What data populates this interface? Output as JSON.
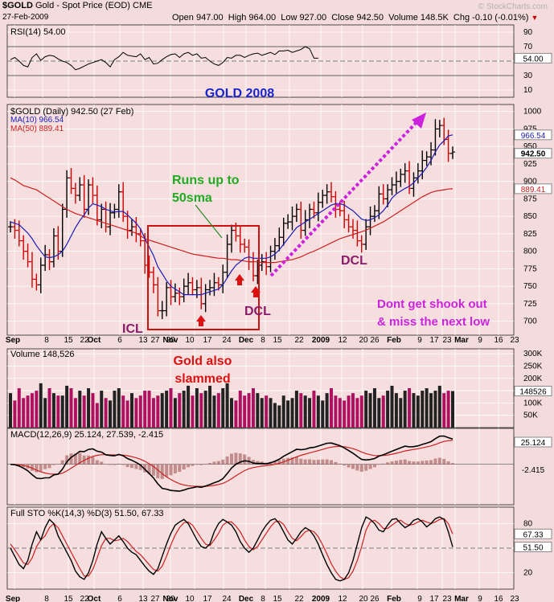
{
  "header": {
    "symbol": "$GOLD",
    "name": "Gold - Spot Price (EOD)",
    "exchange": "CME",
    "date": "27-Feb-2009",
    "open": "Open 947.00",
    "high": "High 964.00",
    "low": "Low 927.00",
    "close": "Close 942.50",
    "volume": "Volume 148.5K",
    "chg": "Chg -0.10 (-0.01%)",
    "chg_arrow": "▼",
    "watermark": "© StockCharts.com"
  },
  "colors": {
    "background": "#f4dcdc",
    "panel": "#f6dede",
    "grid": "#ffffff",
    "price_bar": "#000000",
    "down_bar": "#cc0000",
    "ma10": "#1c1cb4",
    "ma50": "#cc2020",
    "macd_signal": "#cc2020",
    "histogram": "#b07070",
    "volume_up": "#222222",
    "volume_down": "#b01060",
    "annotation_green": "#22aa22",
    "annotation_red": "#dd1111",
    "annotation_magenta": "#cc22dd",
    "annotation_purple": "#8a1a6a",
    "annotation_blue": "#1a22cc"
  },
  "chart_data": {
    "type": "line",
    "title": "GOLD 2008",
    "x_labels": [
      "Sep",
      "8",
      "15",
      "22",
      "Oct",
      "6",
      "13",
      "20",
      "27",
      "Nov",
      "10",
      "17",
      "24",
      "Dec",
      "8",
      "15",
      "22",
      "2009",
      "12",
      "20",
      "26",
      "Feb",
      "9",
      "17",
      "23",
      "Mar",
      "9",
      "16",
      "23"
    ],
    "rsi": {
      "label": "RSI(14) 54.00",
      "value": 54.0,
      "ticks": [
        90,
        70,
        50,
        30,
        10
      ],
      "ylim": [
        0,
        100
      ],
      "levels": [
        70,
        30
      ],
      "values": [
        52,
        55,
        50,
        44,
        42,
        55,
        60,
        51,
        56,
        58,
        57,
        53,
        50,
        48,
        44,
        38,
        40,
        43,
        46,
        48,
        50,
        52,
        48,
        42,
        52,
        56,
        62,
        58,
        57,
        56,
        60,
        52,
        55,
        46,
        47,
        52,
        56,
        59,
        60,
        55,
        60,
        62,
        58,
        60,
        54,
        55,
        50,
        46,
        44,
        48,
        55,
        54,
        58,
        58,
        55,
        58,
        60,
        61,
        58,
        60,
        62,
        59,
        64,
        64,
        65,
        62,
        64,
        66,
        70,
        67,
        54,
        54
      ]
    },
    "price": {
      "label": "$GOLD (Daily) 942.50 (27 Feb)",
      "ticks": [
        1000,
        975,
        950,
        925,
        900,
        875,
        850,
        825,
        800,
        775,
        750,
        725,
        700
      ],
      "ylim": [
        680,
        1010
      ],
      "last": "942.50",
      "ma10_label": "MA(10) 966.54",
      "ma10_value": "966.54",
      "ma50_label": "MA(50) 889.41",
      "ma50_value": "889.41",
      "closes": [
        835,
        830,
        815,
        800,
        785,
        760,
        752,
        780,
        795,
        785,
        822,
        800,
        860,
        905,
        890,
        880,
        895,
        860,
        895,
        880,
        845,
        860,
        835,
        855,
        860,
        885,
        850,
        830,
        835,
        825,
        815,
        780,
        770,
        752,
        715,
        715,
        748,
        735,
        740,
        735,
        750,
        755,
        745,
        748,
        725,
        745,
        748,
        755,
        752,
        770,
        810,
        830,
        822,
        810,
        806,
        785,
        765,
        780,
        785,
        778,
        800,
        808,
        820,
        840,
        842,
        850,
        860,
        830,
        845,
        860,
        855,
        870,
        880,
        885,
        878,
        860,
        858,
        845,
        835,
        830,
        815,
        810,
        835,
        850,
        858,
        882,
        875,
        888,
        895,
        900,
        910,
        915,
        890,
        905,
        915,
        930,
        935,
        945,
        975,
        980,
        960,
        940,
        942
      ],
      "ma10": [
        842,
        840,
        838,
        832,
        826,
        818,
        808,
        800,
        792,
        791,
        792,
        795,
        800,
        810,
        822,
        834,
        844,
        852,
        862,
        868,
        866,
        864,
        860,
        858,
        856,
        857,
        857,
        852,
        846,
        840,
        832,
        818,
        806,
        794,
        778,
        768,
        758,
        750,
        746,
        742,
        738,
        738,
        738,
        738,
        738,
        740,
        742,
        744,
        746,
        752,
        762,
        772,
        780,
        785,
        790,
        792,
        790,
        790,
        790,
        790,
        792,
        796,
        802,
        810,
        818,
        826,
        834,
        838,
        842,
        846,
        850,
        854,
        858,
        862,
        866,
        868,
        868,
        866,
        862,
        858,
        852,
        846,
        844,
        845,
        848,
        852,
        858,
        866,
        876,
        882,
        886,
        890,
        893,
        898,
        905,
        912,
        920,
        930,
        942,
        952,
        958,
        965,
        966.5
      ],
      "ma50": [
        905,
        902,
        898,
        894,
        892,
        890,
        888,
        884,
        880,
        876,
        872,
        868,
        864,
        860,
        857,
        854,
        852,
        850,
        848,
        846,
        844,
        842,
        840,
        838,
        836,
        834,
        832,
        830,
        828,
        826,
        822,
        818,
        816,
        814,
        812,
        810,
        808,
        806,
        804,
        802,
        800,
        798,
        796,
        795,
        794,
        793,
        792,
        791,
        790,
        790,
        789,
        788,
        788,
        787,
        786,
        785,
        785,
        785,
        784,
        784,
        784,
        784,
        785,
        786,
        787,
        788,
        790,
        792,
        795,
        798,
        800,
        803,
        806,
        809,
        812,
        815,
        818,
        820,
        822,
        824,
        826,
        828,
        830,
        833,
        836,
        839,
        842,
        846,
        850,
        854,
        858,
        862,
        866,
        870,
        874,
        878,
        881,
        884,
        886,
        887,
        888,
        889,
        889.4
      ]
    },
    "volume": {
      "label": "Volume 148,526",
      "value": "148526",
      "ticks": [
        "300K",
        "250K",
        "200K",
        "150K",
        "100K",
        "50K"
      ],
      "ylim": [
        0,
        320000
      ],
      "values": [
        140,
        110,
        160,
        120,
        130,
        140,
        150,
        180,
        120,
        160,
        140,
        130,
        130,
        170,
        160,
        120,
        150,
        130,
        160,
        140,
        100,
        150,
        120,
        110,
        150,
        160,
        130,
        110,
        140,
        120,
        130,
        150,
        150,
        120,
        130,
        140,
        150,
        160,
        120,
        140,
        150,
        170,
        130,
        160,
        140,
        150,
        170,
        130,
        140,
        160,
        180,
        120,
        110,
        150,
        130,
        140,
        160,
        140,
        120,
        130,
        120,
        100,
        90,
        130,
        110,
        120,
        150,
        140,
        130,
        120,
        150,
        130,
        110,
        140,
        160,
        130,
        120,
        110,
        130,
        140,
        120,
        130,
        150,
        140,
        160,
        120,
        130,
        150,
        170,
        140,
        120,
        150,
        160,
        140,
        130,
        150,
        160,
        140,
        150,
        170,
        140,
        150,
        148.5
      ]
    },
    "macd": {
      "label": "MACD(12,26,9) 25.124, 27.539, -2.415",
      "macd_value": "25.124",
      "hist_value": "-2.415",
      "ylim": [
        -45,
        40
      ]
    },
    "sto": {
      "label": "Full STO %K(14,3) %D(3) 51.50, 67.33",
      "k_value": "51.50",
      "d_value": "67.33",
      "ticks": [
        80,
        50,
        20
      ],
      "ylim": [
        0,
        100
      ],
      "k": [
        50,
        40,
        30,
        25,
        35,
        55,
        70,
        60,
        75,
        85,
        80,
        65,
        55,
        45,
        35,
        22,
        15,
        12,
        20,
        35,
        55,
        70,
        62,
        55,
        60,
        65,
        58,
        50,
        45,
        42,
        35,
        28,
        22,
        18,
        25,
        40,
        55,
        68,
        78,
        82,
        85,
        80,
        70,
        60,
        52,
        50,
        55,
        70,
        80,
        85,
        82,
        78,
        70,
        58,
        50,
        45,
        50,
        60,
        70,
        78,
        84,
        86,
        80,
        70,
        60,
        55,
        62,
        70,
        75,
        72,
        65,
        55,
        42,
        30,
        20,
        12,
        10,
        12,
        20,
        35,
        55,
        75,
        88,
        85,
        80,
        72,
        70,
        78,
        85,
        86,
        80,
        75,
        78,
        84,
        86,
        82,
        76,
        80,
        86,
        88,
        85,
        70,
        51.5
      ],
      "d": [
        55,
        48,
        40,
        32,
        30,
        38,
        52,
        60,
        65,
        75,
        80,
        75,
        65,
        55,
        45,
        35,
        25,
        16,
        16,
        24,
        38,
        53,
        62,
        62,
        59,
        60,
        62,
        58,
        52,
        46,
        42,
        36,
        30,
        24,
        22,
        28,
        40,
        54,
        66,
        75,
        81,
        82,
        78,
        70,
        62,
        55,
        53,
        60,
        68,
        78,
        82,
        82,
        77,
        70,
        60,
        52,
        48,
        52,
        60,
        68,
        76,
        82,
        83,
        79,
        70,
        62,
        59,
        64,
        70,
        72,
        70,
        64,
        54,
        43,
        31,
        22,
        15,
        12,
        14,
        22,
        35,
        52,
        72,
        82,
        84,
        80,
        74,
        74,
        78,
        82,
        84,
        80,
        78,
        79,
        82,
        84,
        82,
        80,
        82,
        85,
        86,
        80,
        67.3
      ]
    },
    "annotations": {
      "runs_up_line1": "Runs up to",
      "runs_up_line2": "50sma",
      "icl": "ICL",
      "dcl_dec": "DCL",
      "dcl_jan": "DCL",
      "shook_line1": "Dont get shook out",
      "shook_line2": "& miss the next low",
      "slammed_line1": "Gold also",
      "slammed_line2": "slammed"
    }
  }
}
